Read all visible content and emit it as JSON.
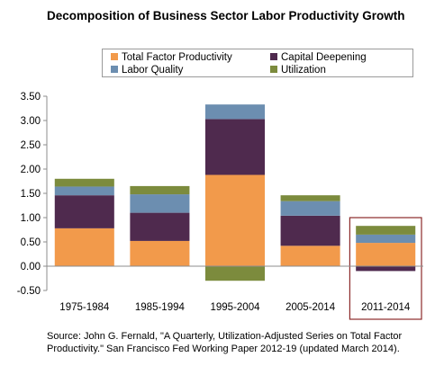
{
  "chart_data": {
    "type": "stacked_bar",
    "title": "Decomposition of Business Sector Labor Productivity Growth",
    "categories": [
      "1975-1984",
      "1985-1994",
      "1995-2004",
      "2005-2014",
      "2011-2014"
    ],
    "series": [
      {
        "name": "Total Factor Productivity",
        "color": "#f29a4b",
        "values": [
          0.78,
          0.52,
          1.88,
          0.42,
          0.48
        ]
      },
      {
        "name": "Capital Deepening",
        "color": "#4f2a4e",
        "values": [
          0.68,
          0.58,
          1.15,
          0.62,
          -0.1
        ]
      },
      {
        "name": "Labor Quality",
        "color": "#6c8eb0",
        "values": [
          0.18,
          0.38,
          0.3,
          0.3,
          0.17
        ]
      },
      {
        "name": "Utilization",
        "color": "#7c8b3d",
        "values": [
          0.16,
          0.17,
          -0.3,
          0.12,
          0.18
        ]
      }
    ],
    "ylim": [
      -0.5,
      3.5
    ],
    "yticks": [
      "-0.50",
      "0.00",
      "0.50",
      "1.00",
      "1.50",
      "2.00",
      "2.50",
      "3.00",
      "3.50"
    ],
    "grid": false,
    "legend_placement": "top",
    "highlight_category": "2011-2014",
    "highlight_color": "#8b2a2a"
  },
  "source_note": "Source: John G. Fernald, \"A Quarterly, Utilization-Adjusted Series on Total Factor Productivity.\" San Francisco Fed Working Paper 2012-19 (updated March 2014)."
}
